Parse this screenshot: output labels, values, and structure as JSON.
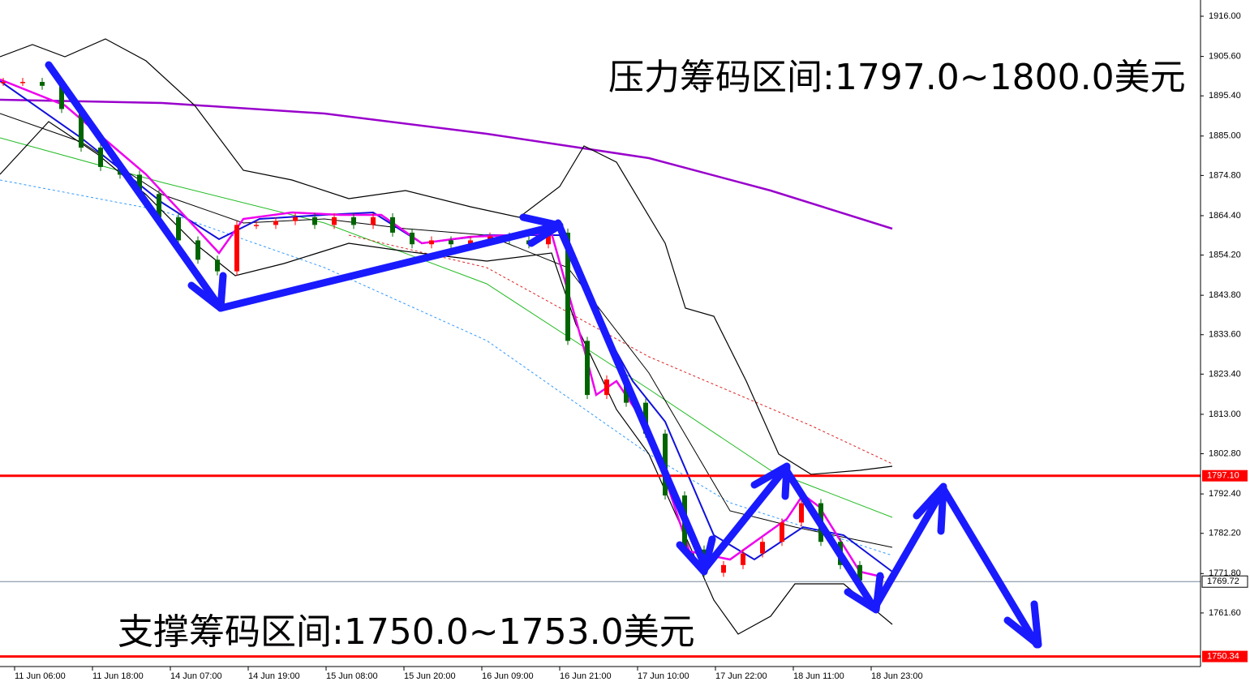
{
  "chart_data": {
    "type": "candlestick",
    "annotations": [
      "压力筹码区间:1797.0~1800.0美元",
      "支撑筹码区间:1750.0~1753.0美元"
    ],
    "categories": [
      "11 Jun 06:00",
      "11 Jun 18:00",
      "14 Jun 07:00",
      "14 Jun 19:00",
      "15 Jun 08:00",
      "15 Jun 20:00",
      "16 Jun 09:00",
      "16 Jun 21:00",
      "17 Jun 10:00",
      "17 Jun 22:00",
      "18 Jun 11:00",
      "18 Jun 23:00"
    ],
    "closes": [
      1899,
      1899,
      1898,
      1892,
      1882,
      1877,
      1875,
      1870,
      1864,
      1858,
      1853,
      1850,
      1862,
      1862,
      1863,
      1864,
      1862,
      1864,
      1862,
      1864,
      1860,
      1857,
      1858,
      1857,
      1858,
      1859,
      1858,
      1857,
      1860,
      1832,
      1818,
      1822,
      1816,
      1808,
      1792,
      1778,
      1772,
      1774,
      1777,
      1780,
      1785,
      1790,
      1780,
      1774,
      1770,
      1769.72
    ],
    "up_color": "#ff0000",
    "down_color": "#006400",
    "levels": [
      {
        "value": 1797.1,
        "label": "1797.10"
      },
      {
        "value": 1750.34,
        "label": "1750.34"
      }
    ],
    "level_color": "#ff0000",
    "current_price": {
      "value": 1769.72,
      "label": "1769.72"
    },
    "ylim": [
      1742.7,
      1920.2
    ],
    "yticks": [
      {
        "value": 1916.0,
        "label": "1916.00"
      },
      {
        "value": 1905.6,
        "label": "1905.60"
      },
      {
        "value": 1895.4,
        "label": "1895.40"
      },
      {
        "value": 1885.0,
        "label": "1885.00"
      },
      {
        "value": 1874.8,
        "label": "1874.80"
      },
      {
        "value": 1864.4,
        "label": "1864.40"
      },
      {
        "value": 1854.2,
        "label": "1854.20"
      },
      {
        "value": 1843.8,
        "label": "1843.80"
      },
      {
        "value": 1833.6,
        "label": "1833.60"
      },
      {
        "value": 1823.4,
        "label": "1823.40"
      },
      {
        "value": 1813.0,
        "label": "1813.00"
      },
      {
        "value": 1802.8,
        "label": "1802.80"
      },
      {
        "value": 1792.4,
        "label": "1792.40"
      },
      {
        "value": 1782.2,
        "label": "1782.20"
      },
      {
        "value": 1771.8,
        "label": "1771.80"
      },
      {
        "value": 1761.6,
        "label": "1761.60"
      }
    ]
  }
}
